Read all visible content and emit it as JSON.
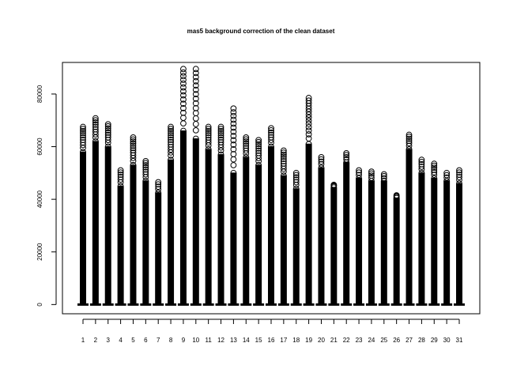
{
  "chart_data": {
    "type": "boxplot",
    "title": "mas5 background correction of the clean dataset",
    "xlabel": "",
    "ylabel": "",
    "grid": false,
    "legend": "none",
    "ylim": [
      -3500,
      92000
    ],
    "yticks": [
      0,
      20000,
      40000,
      60000,
      80000
    ],
    "ytick_labels": [
      "0",
      "20000",
      "40000",
      "60000",
      "80000"
    ],
    "categories": [
      "1",
      "2",
      "3",
      "4",
      "5",
      "6",
      "7",
      "8",
      "9",
      "10",
      "11",
      "12",
      "13",
      "14",
      "15",
      "16",
      "17",
      "18",
      "19",
      "20",
      "21",
      "22",
      "23",
      "24",
      "25",
      "26",
      "27",
      "28",
      "29",
      "30",
      "31"
    ],
    "whisker_top": [
      58000,
      62000,
      60000,
      45000,
      53000,
      47000,
      42500,
      55000,
      66000,
      63000,
      59000,
      57000,
      50000,
      56000,
      53000,
      60000,
      49000,
      44000,
      61000,
      52000,
      44500,
      54000,
      48000,
      47000,
      47000,
      40500,
      59000,
      50000,
      48000,
      47000,
      46000
    ],
    "outlier_max": [
      67500,
      70800,
      68500,
      51000,
      63500,
      54500,
      46500,
      67500,
      89500,
      89500,
      67500,
      67500,
      74500,
      63500,
      62500,
      67000,
      58500,
      50000,
      78500,
      56000,
      45500,
      57500,
      51000,
      50500,
      49500,
      41500,
      64500,
      55000,
      53500,
      50000,
      51000
    ],
    "median": 0
  },
  "colors": {
    "ink": "#000000",
    "background": "#ffffff"
  }
}
